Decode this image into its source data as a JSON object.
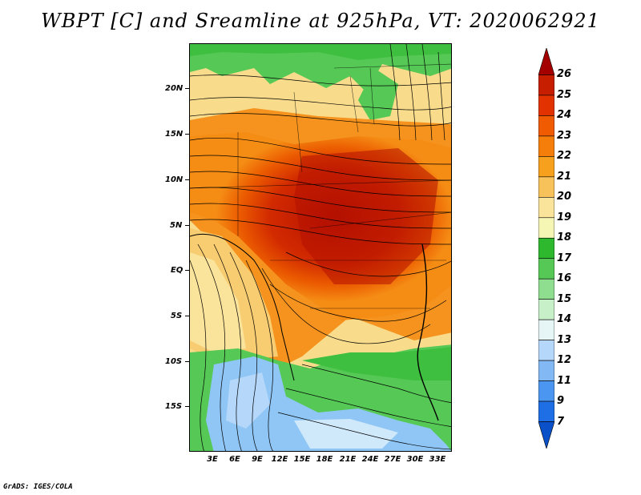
{
  "title": "WBPT [C] and Sreamline at 925hPa, VT: 2020062921",
  "credit": "GrADS: IGES/COLA",
  "map": {
    "lat_labels": [
      "20N",
      "15N",
      "10N",
      "5N",
      "EQ",
      "5S",
      "10S",
      "15S"
    ],
    "lon_labels": [
      "3E",
      "6E",
      "9E",
      "12E",
      "15E",
      "18E",
      "21E",
      "24E",
      "27E",
      "30E",
      "33E"
    ],
    "lat_range": [
      -20,
      25
    ],
    "lon_range": [
      0,
      35
    ],
    "variable": "WBPT",
    "units": "C",
    "level": "925hPa",
    "valid_time": "2020062921"
  },
  "colorbar": {
    "labels": [
      "26",
      "25",
      "24",
      "23",
      "22",
      "21",
      "20",
      "19",
      "18",
      "17",
      "16",
      "15",
      "14",
      "13",
      "12",
      "11",
      "9",
      "7"
    ],
    "colors": [
      "#a50000",
      "#c81e00",
      "#e13200",
      "#f05a00",
      "#f57d0a",
      "#f7a01e",
      "#f8c25a",
      "#fae39a",
      "#f5f5b4",
      "#2eb82e",
      "#55c855",
      "#8fdd8f",
      "#c8f0c8",
      "#e6f5f5",
      "#b4d7fa",
      "#82b9f5",
      "#4b96f0",
      "#1e6ee6",
      "#0a50c8"
    ]
  }
}
